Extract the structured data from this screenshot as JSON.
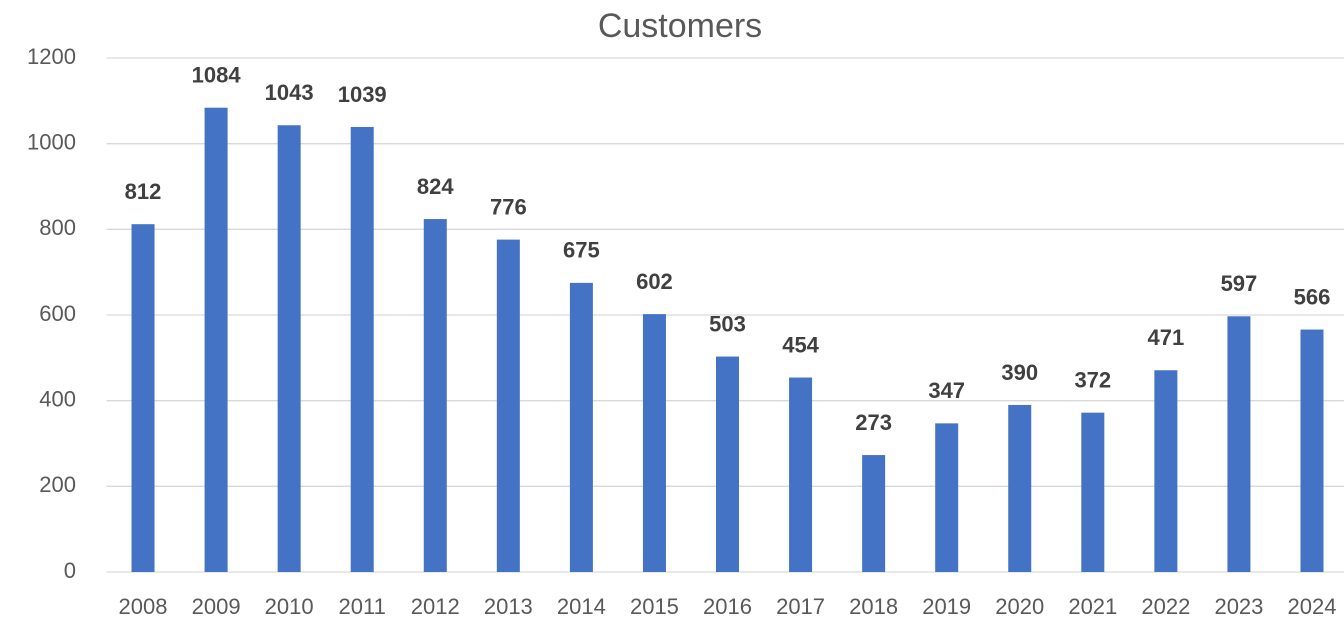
{
  "chart_data": {
    "type": "bar",
    "title": "Customers",
    "categories": [
      "2008",
      "2009",
      "2010",
      "2011",
      "2012",
      "2013",
      "2014",
      "2015",
      "2016",
      "2017",
      "2018",
      "2019",
      "2020",
      "2021",
      "2022",
      "2023",
      "2024"
    ],
    "values": [
      812,
      1084,
      1043,
      1039,
      824,
      776,
      675,
      602,
      503,
      454,
      273,
      347,
      390,
      372,
      471,
      597,
      566
    ],
    "color": "#4472c4",
    "ylim": [
      0,
      1200
    ],
    "yticks": [
      0,
      200,
      400,
      600,
      800,
      1000,
      1200
    ],
    "grid": true
  }
}
